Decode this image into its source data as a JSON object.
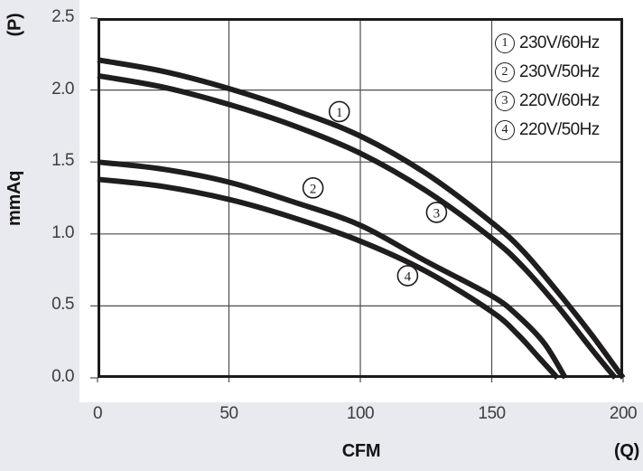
{
  "colors": {
    "background": "#e9e9f0",
    "panel": "#ffffff",
    "curve": "#1f1d1e",
    "grid": "#4d4d4d",
    "border": "#1c1a1b",
    "tick_text": "#3d3d3f",
    "axis_text": "#151314"
  },
  "chart_data": {
    "type": "line",
    "title": "",
    "xlabel": "CFM",
    "xlabel_suffix": "(Q)",
    "ylabel": "mmAq",
    "ylabel_suffix": "(P)",
    "xlim": [
      0,
      200
    ],
    "ylim": [
      0,
      2.5
    ],
    "x_ticks": [
      0,
      50,
      100,
      150,
      200
    ],
    "x_tick_labels": [
      "0",
      "50",
      "100",
      "150",
      "200"
    ],
    "y_ticks": [
      0,
      0.5,
      1,
      1.5,
      2,
      2.5
    ],
    "y_tick_labels": [
      "0.0",
      "0.5",
      "1.0",
      "1.5",
      "2.0",
      "2.5"
    ],
    "grid": true,
    "legend_position": "top-right",
    "series": [
      {
        "id": "1",
        "name": "230V/60Hz",
        "points": [
          [
            0,
            2.21
          ],
          [
            25,
            2.13
          ],
          [
            50,
            2.01
          ],
          [
            75,
            1.86
          ],
          [
            100,
            1.68
          ],
          [
            125,
            1.42
          ],
          [
            150,
            1.08
          ],
          [
            162,
            0.88
          ],
          [
            175,
            0.6
          ],
          [
            188,
            0.3
          ],
          [
            200,
            0.0
          ]
        ]
      },
      {
        "id": "2",
        "name": "230V/50Hz",
        "points": [
          [
            0,
            1.5
          ],
          [
            25,
            1.45
          ],
          [
            50,
            1.36
          ],
          [
            75,
            1.22
          ],
          [
            100,
            1.06
          ],
          [
            125,
            0.81
          ],
          [
            150,
            0.57
          ],
          [
            160,
            0.43
          ],
          [
            170,
            0.24
          ],
          [
            178,
            0.0
          ]
        ]
      },
      {
        "id": "3",
        "name": "220V/60Hz",
        "points": [
          [
            0,
            2.1
          ],
          [
            25,
            2.02
          ],
          [
            50,
            1.9
          ],
          [
            75,
            1.75
          ],
          [
            100,
            1.56
          ],
          [
            125,
            1.3
          ],
          [
            150,
            0.97
          ],
          [
            162,
            0.77
          ],
          [
            175,
            0.5
          ],
          [
            188,
            0.2
          ],
          [
            197,
            0.0
          ]
        ]
      },
      {
        "id": "4",
        "name": "220V/50Hz",
        "points": [
          [
            0,
            1.38
          ],
          [
            25,
            1.33
          ],
          [
            50,
            1.24
          ],
          [
            75,
            1.11
          ],
          [
            100,
            0.95
          ],
          [
            125,
            0.74
          ],
          [
            150,
            0.46
          ],
          [
            160,
            0.3
          ],
          [
            168,
            0.14
          ],
          [
            175,
            0.0
          ]
        ]
      }
    ],
    "annotations": [
      {
        "label": "1",
        "cfm": 92,
        "p": 1.85
      },
      {
        "label": "2",
        "cfm": 82,
        "p": 1.32
      },
      {
        "label": "3",
        "cfm": 129,
        "p": 1.15
      },
      {
        "label": "4",
        "cfm": 118,
        "p": 0.71
      }
    ]
  }
}
